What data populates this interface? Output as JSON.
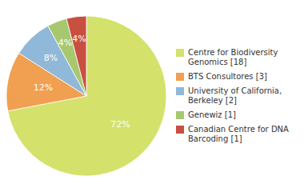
{
  "chart_data": {
    "type": "pie",
    "categories": [
      "Centre for Biodiversity\nGenomics [18]",
      "BTS Consultores [3]",
      "University of California,\nBerkeley [2]",
      "Genewiz [1]",
      "Canadian Centre for DNA\nBarcoding [1]"
    ],
    "values": [
      72,
      12,
      8,
      4,
      4
    ],
    "value_labels": [
      "72%",
      "12%",
      "8%",
      "4%",
      "4%"
    ],
    "colors": [
      "#d4e16a",
      "#f0a050",
      "#90b8d8",
      "#a8c870",
      "#c85040"
    ],
    "data_labels": true,
    "legend": "right"
  }
}
